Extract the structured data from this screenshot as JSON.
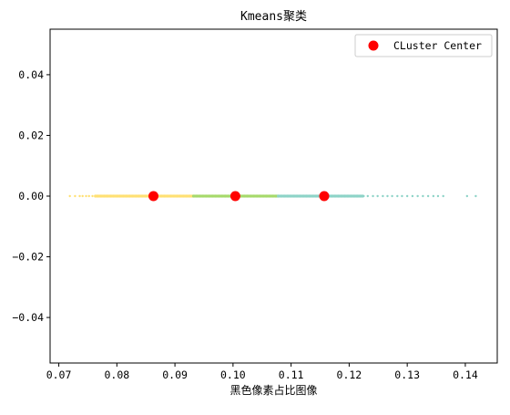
{
  "chart_data": {
    "type": "scatter",
    "title": "Kmeans聚类",
    "xlabel": "黑色像素占比图像",
    "ylabel": "",
    "xlim": [
      0.0685,
      0.1455
    ],
    "ylim": [
      -0.055,
      0.055
    ],
    "x_ticks": [
      0.07,
      0.08,
      0.09,
      0.1,
      0.11,
      0.12,
      0.13,
      0.14
    ],
    "x_tick_labels": [
      "0.07",
      "0.08",
      "0.09",
      "0.10",
      "0.11",
      "0.12",
      "0.13",
      "0.14"
    ],
    "y_ticks": [
      0.04,
      0.02,
      0.0,
      -0.02,
      -0.04
    ],
    "y_tick_labels": [
      "0.04",
      "0.02",
      "0.00",
      "−0.02",
      "−0.04"
    ],
    "grid": false,
    "legend": {
      "placement": "top-right",
      "entries": [
        {
          "label": "CLuster Center",
          "color": "#ff0000",
          "marker": "circle"
        }
      ]
    },
    "series": [
      {
        "color": "#ffe073",
        "y": 0.0,
        "x_range": [
          0.0719,
          0.0932
        ],
        "sparse_x": [
          0.0719,
          0.0728,
          0.0736,
          0.0741,
          0.0747,
          0.0752,
          0.0758,
          0.0763
        ]
      },
      {
        "color": "#a6d96a",
        "y": 0.0,
        "x_range": [
          0.0932,
          0.1078
        ],
        "sparse_x": []
      },
      {
        "color": "#8dd3c7",
        "y": 0.0,
        "x_range": [
          0.1078,
          0.1362
        ],
        "sparse_x": [
          0.1225,
          0.1232,
          0.1241,
          0.1249,
          0.1258,
          0.1266,
          0.1274,
          0.1283,
          0.1291,
          0.13,
          0.1309,
          0.1318,
          0.1327,
          0.1336,
          0.1345,
          0.1353,
          0.1362,
          0.1403,
          0.1418
        ]
      }
    ],
    "cluster_centers": {
      "name": "CLuster Center",
      "color": "#ff0000",
      "x": [
        0.0863,
        0.1004,
        0.1157
      ],
      "y": [
        0.0,
        0.0,
        0.0
      ]
    }
  }
}
